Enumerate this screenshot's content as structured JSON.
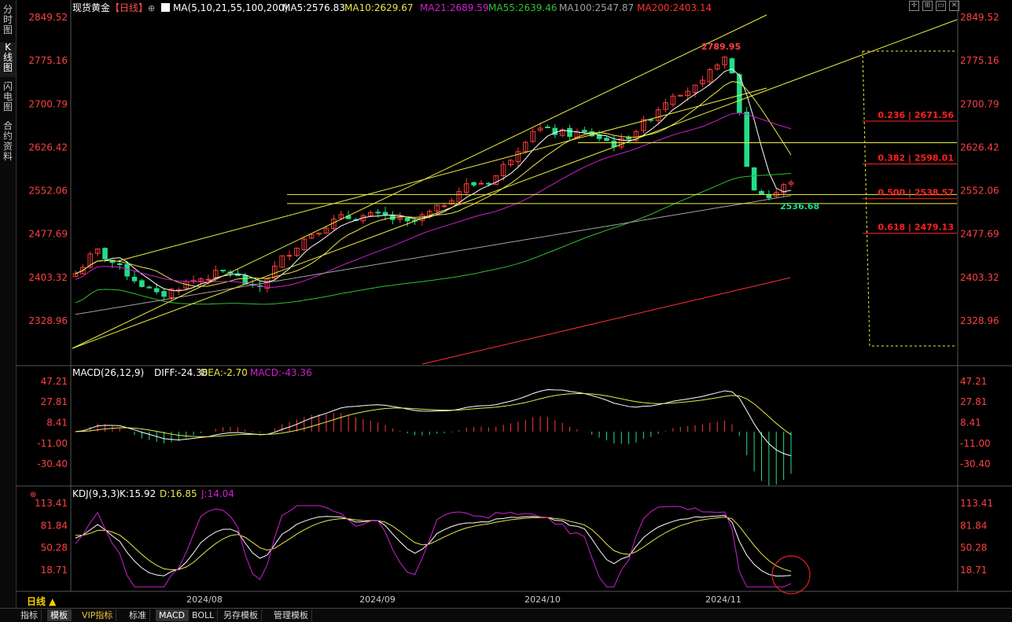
{
  "sidebar": {
    "tabs": [
      "分时图",
      "K线图",
      "闪电图",
      "合约资料"
    ],
    "active": 1
  },
  "header": {
    "instrument": "现货黄金",
    "period_tag": "【日线】",
    "ma_label": "MA(5,10,21,55,100,200)",
    "ma_values": [
      {
        "text": "MA5:2576.83",
        "color": "#ffffff"
      },
      {
        "text": "MA10:2629.67",
        "color": "#e8e84a"
      },
      {
        "text": "MA21:2689.59",
        "color": "#d020d0"
      },
      {
        "text": "MA55:2639.46",
        "color": "#30c030"
      },
      {
        "text": "MA100:2547.87",
        "color": "#a0a0a0"
      },
      {
        "text": "MA200:2403.14",
        "color": "#ff3030"
      }
    ]
  },
  "macd_header": {
    "label": "MACD(26,12,9)",
    "diff": "DIFF:-24.38",
    "dea": "DEA:-2.70",
    "macd": "MACD:-43.36"
  },
  "kdj_header": {
    "label": "KDJ(9,3,3)",
    "k": "K:15.92",
    "d": "D:16.85",
    "j": "J:14.04"
  },
  "bottom_tabs": [
    "指标",
    "模板",
    "VIP指标",
    "标准",
    "MACD",
    "BOLL",
    "另存模板",
    "管理模板"
  ],
  "period_button": "日线 ▲",
  "colors": {
    "up": "#ff3b3b",
    "down": "#22dd88",
    "trend": "#f0f040",
    "fib": "#ff2020",
    "axis_text": "#ff4040"
  },
  "chart_data": {
    "type": "candlestick",
    "price_axis_ticks": [
      "2849.52",
      "2775.16",
      "2700.79",
      "2626.42",
      "2552.06",
      "2477.69",
      "2403.32",
      "2328.96"
    ],
    "macd_axis_ticks": [
      "47.21",
      "27.81",
      "8.41",
      "-11.00",
      "-30.40"
    ],
    "kdj_axis_ticks": [
      "113.41",
      "81.84",
      "50.28",
      "18.71"
    ],
    "date_labels": [
      "2024/08",
      "2024/09",
      "2024/10",
      "2024/11"
    ],
    "annotations": {
      "high": "2789.95",
      "low": "2536.68"
    },
    "fibonacci": [
      {
        "label": "0.236 | 2671.56",
        "value": 2671.56
      },
      {
        "label": "0.382 | 2598.01",
        "value": 2598.01
      },
      {
        "label": "0.500 | 2538.57",
        "value": 2538.57
      },
      {
        "label": "0.618 | 2479.13",
        "value": 2479.13
      }
    ],
    "horizontal_levels": [
      2634.5,
      2545.5,
      2530.0
    ],
    "candles_approx_count": 98,
    "range": [
      2300,
      2860
    ]
  }
}
